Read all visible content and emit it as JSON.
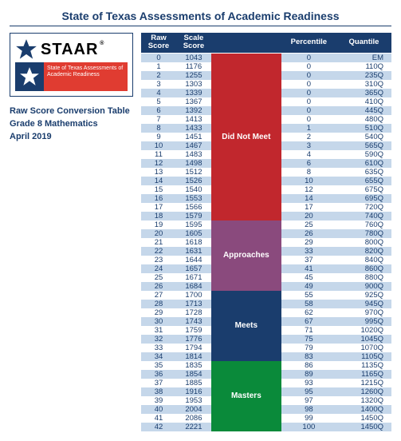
{
  "page_title": "State of Texas Assessments of Academic Readiness",
  "logo": {
    "brand": "STAAR",
    "tagline": "State of Texas Assessments of Academic Readiness"
  },
  "meta": {
    "line1": "Raw Score Conversion Table",
    "line2": "Grade 8 Mathematics",
    "line3": "April 2019"
  },
  "table": {
    "headers": {
      "raw": "Raw Score",
      "scale": "Scale Score",
      "band": "",
      "pct": "Percentile",
      "quant": "Quantile"
    },
    "bands": [
      {
        "label": "Did Not Meet",
        "start": 0,
        "end": 18,
        "color": "#c1272d"
      },
      {
        "label": "Approaches",
        "start": 19,
        "end": 26,
        "color": "#8a4a7d"
      },
      {
        "label": "Meets",
        "start": 27,
        "end": 34,
        "color": "#1a3d6d"
      },
      {
        "label": "Masters",
        "start": 35,
        "end": 42,
        "color": "#0a8a3a"
      }
    ],
    "rows": [
      {
        "raw": 0,
        "scale": 1043,
        "pct": 0,
        "quant": "EM"
      },
      {
        "raw": 1,
        "scale": 1176,
        "pct": 0,
        "quant": "110Q"
      },
      {
        "raw": 2,
        "scale": 1255,
        "pct": 0,
        "quant": "235Q"
      },
      {
        "raw": 3,
        "scale": 1303,
        "pct": 0,
        "quant": "310Q"
      },
      {
        "raw": 4,
        "scale": 1339,
        "pct": 0,
        "quant": "365Q"
      },
      {
        "raw": 5,
        "scale": 1367,
        "pct": 0,
        "quant": "410Q"
      },
      {
        "raw": 6,
        "scale": 1392,
        "pct": 0,
        "quant": "445Q"
      },
      {
        "raw": 7,
        "scale": 1413,
        "pct": 0,
        "quant": "480Q"
      },
      {
        "raw": 8,
        "scale": 1433,
        "pct": 1,
        "quant": "510Q"
      },
      {
        "raw": 9,
        "scale": 1451,
        "pct": 2,
        "quant": "540Q"
      },
      {
        "raw": 10,
        "scale": 1467,
        "pct": 3,
        "quant": "565Q"
      },
      {
        "raw": 11,
        "scale": 1483,
        "pct": 4,
        "quant": "590Q"
      },
      {
        "raw": 12,
        "scale": 1498,
        "pct": 6,
        "quant": "610Q"
      },
      {
        "raw": 13,
        "scale": 1512,
        "pct": 8,
        "quant": "635Q"
      },
      {
        "raw": 14,
        "scale": 1526,
        "pct": 10,
        "quant": "655Q"
      },
      {
        "raw": 15,
        "scale": 1540,
        "pct": 12,
        "quant": "675Q"
      },
      {
        "raw": 16,
        "scale": 1553,
        "pct": 14,
        "quant": "695Q"
      },
      {
        "raw": 17,
        "scale": 1566,
        "pct": 17,
        "quant": "720Q"
      },
      {
        "raw": 18,
        "scale": 1579,
        "pct": 20,
        "quant": "740Q"
      },
      {
        "raw": 19,
        "scale": 1595,
        "pct": 25,
        "quant": "760Q"
      },
      {
        "raw": 20,
        "scale": 1605,
        "pct": 26,
        "quant": "780Q"
      },
      {
        "raw": 21,
        "scale": 1618,
        "pct": 29,
        "quant": "800Q"
      },
      {
        "raw": 22,
        "scale": 1631,
        "pct": 33,
        "quant": "820Q"
      },
      {
        "raw": 23,
        "scale": 1644,
        "pct": 37,
        "quant": "840Q"
      },
      {
        "raw": 24,
        "scale": 1657,
        "pct": 41,
        "quant": "860Q"
      },
      {
        "raw": 25,
        "scale": 1671,
        "pct": 45,
        "quant": "880Q"
      },
      {
        "raw": 26,
        "scale": 1684,
        "pct": 49,
        "quant": "900Q"
      },
      {
        "raw": 27,
        "scale": 1700,
        "pct": 55,
        "quant": "925Q"
      },
      {
        "raw": 28,
        "scale": 1713,
        "pct": 58,
        "quant": "945Q"
      },
      {
        "raw": 29,
        "scale": 1728,
        "pct": 62,
        "quant": "970Q"
      },
      {
        "raw": 30,
        "scale": 1743,
        "pct": 67,
        "quant": "995Q"
      },
      {
        "raw": 31,
        "scale": 1759,
        "pct": 71,
        "quant": "1020Q"
      },
      {
        "raw": 32,
        "scale": 1776,
        "pct": 75,
        "quant": "1045Q"
      },
      {
        "raw": 33,
        "scale": 1794,
        "pct": 79,
        "quant": "1070Q"
      },
      {
        "raw": 34,
        "scale": 1814,
        "pct": 83,
        "quant": "1105Q"
      },
      {
        "raw": 35,
        "scale": 1835,
        "pct": 86,
        "quant": "1135Q"
      },
      {
        "raw": 36,
        "scale": 1854,
        "pct": 89,
        "quant": "1165Q"
      },
      {
        "raw": 37,
        "scale": 1885,
        "pct": 93,
        "quant": "1215Q"
      },
      {
        "raw": 38,
        "scale": 1916,
        "pct": 95,
        "quant": "1260Q"
      },
      {
        "raw": 39,
        "scale": 1953,
        "pct": 97,
        "quant": "1320Q"
      },
      {
        "raw": 40,
        "scale": 2004,
        "pct": 98,
        "quant": "1400Q"
      },
      {
        "raw": 41,
        "scale": 2086,
        "pct": 99,
        "quant": "1450Q"
      },
      {
        "raw": 42,
        "scale": 2221,
        "pct": 100,
        "quant": "1450Q"
      }
    ]
  }
}
